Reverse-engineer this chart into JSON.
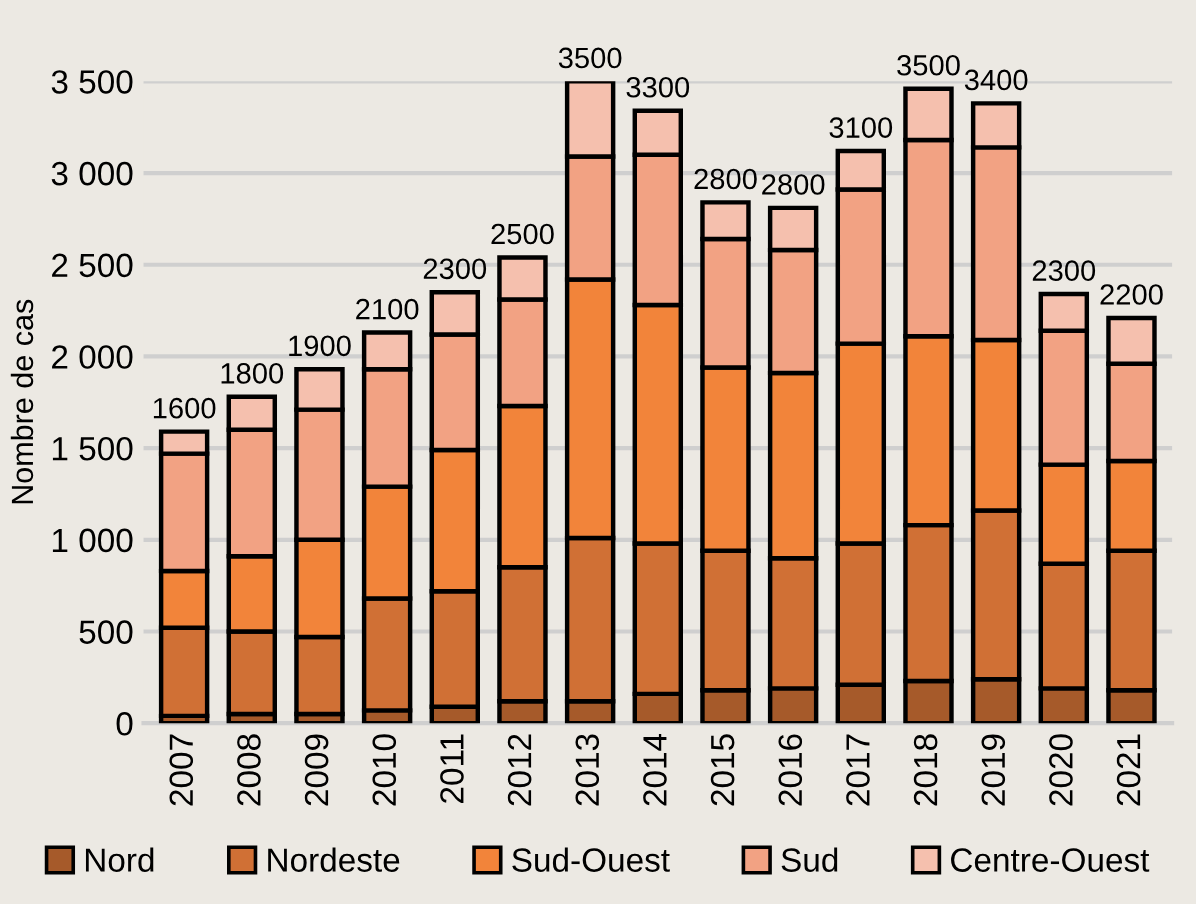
{
  "chart_data": {
    "type": "bar",
    "stacked": true,
    "ylabel": "Nombre de cas",
    "categories": [
      "2007",
      "2008",
      "2009",
      "2010",
      "2011",
      "2012",
      "2013",
      "2014",
      "2015",
      "2016",
      "2017",
      "2018",
      "2019",
      "2020",
      "2021"
    ],
    "series": [
      {
        "name": "Nord",
        "color": "#a65a2a",
        "values": [
          40,
          50,
          50,
          70,
          90,
          120,
          120,
          160,
          180,
          190,
          210,
          230,
          240,
          190,
          180
        ]
      },
      {
        "name": "Nordeste",
        "color": "#d07035",
        "values": [
          480,
          450,
          420,
          610,
          630,
          730,
          890,
          820,
          760,
          710,
          770,
          850,
          920,
          680,
          760
        ]
      },
      {
        "name": "Sud-Ouest",
        "color": "#f2843a",
        "values": [
          310,
          410,
          530,
          610,
          770,
          880,
          1410,
          1300,
          1000,
          1010,
          1090,
          1030,
          930,
          540,
          490
        ]
      },
      {
        "name": "Sud",
        "color": "#f2a283",
        "values": [
          640,
          690,
          710,
          640,
          630,
          580,
          670,
          820,
          700,
          670,
          840,
          1070,
          1050,
          730,
          530
        ]
      },
      {
        "name": "Centre-Ouest",
        "color": "#f5c0ae",
        "values": [
          120,
          180,
          220,
          200,
          230,
          230,
          410,
          240,
          200,
          230,
          210,
          280,
          240,
          200,
          250
        ]
      }
    ],
    "annotations": [
      {
        "text": "1600",
        "x": "2007",
        "y": 1590
      },
      {
        "text": "1800",
        "x": "2008",
        "y": 1780
      },
      {
        "text": "1900",
        "x": "2009",
        "y": 1930
      },
      {
        "text": "2100",
        "x": "2010",
        "y": 2130
      },
      {
        "text": "2300",
        "x": "2011",
        "y": 2350
      },
      {
        "text": "2500",
        "x": "2012",
        "y": 2540
      },
      {
        "text": "3500",
        "x": "2013",
        "y": 3500
      },
      {
        "text": "3300",
        "x": "2014",
        "y": 3340
      },
      {
        "text": "2800",
        "x": "2015",
        "y": 2840
      },
      {
        "text": "2800",
        "x": "2016",
        "y": 2810
      },
      {
        "text": "3100",
        "x": "2017",
        "y": 3120
      },
      {
        "text": "3500",
        "x": "2018",
        "y": 3460
      },
      {
        "text": "3400",
        "x": "2019",
        "y": 3380
      },
      {
        "text": "2300",
        "x": "2020",
        "y": 2340
      },
      {
        "text": "2200",
        "x": "2021",
        "y": 2210
      }
    ],
    "ylim": [
      0,
      3500
    ],
    "yticks": [
      {
        "value": 0,
        "label": "0"
      },
      {
        "value": 500,
        "label": "500"
      },
      {
        "value": 1000,
        "label": "1 000"
      },
      {
        "value": 1500,
        "label": "1 500"
      },
      {
        "value": 2000,
        "label": "2 000"
      },
      {
        "value": 2500,
        "label": "2 500"
      },
      {
        "value": 3000,
        "label": "3 000"
      },
      {
        "value": 3500,
        "label": "3 500"
      }
    ],
    "grid": "y",
    "legend": "bottom"
  }
}
